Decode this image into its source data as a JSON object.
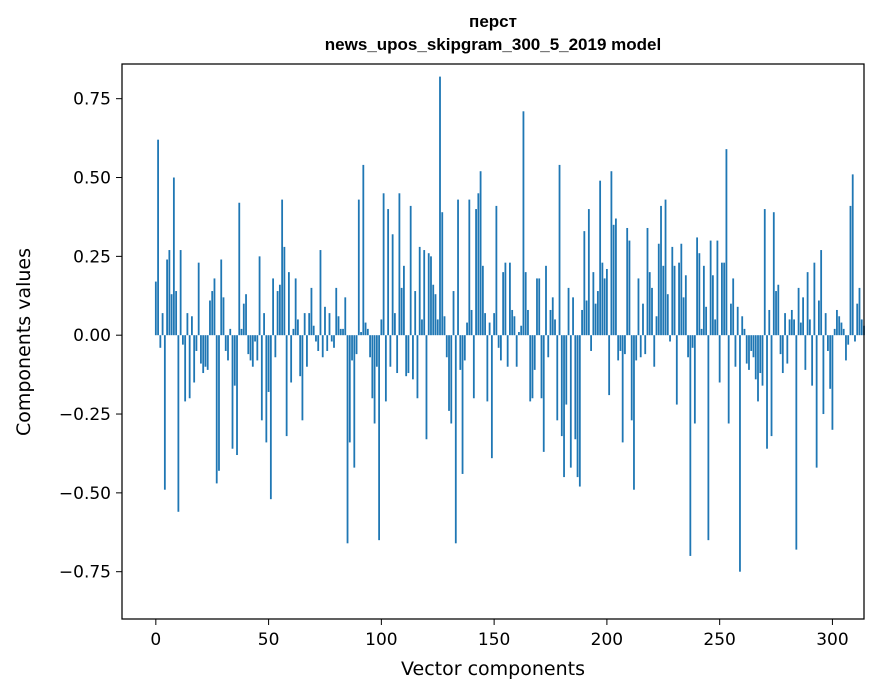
{
  "chart_data": {
    "type": "bar",
    "title": "перст",
    "subtitle": "news_upos_skipgram_300_5_2019 model",
    "xlabel": "Vector components",
    "ylabel": "Components values",
    "xlim": [
      -15,
      314
    ],
    "ylim": [
      -0.9,
      0.86
    ],
    "xticks": [
      0,
      50,
      100,
      150,
      200,
      250,
      300
    ],
    "xtick_labels": [
      "0",
      "50",
      "100",
      "150",
      "200",
      "250",
      "300"
    ],
    "yticks": [
      -0.75,
      -0.5,
      -0.25,
      0.0,
      0.25,
      0.5,
      0.75
    ],
    "ytick_labels": [
      "−0.75",
      "−0.50",
      "−0.25",
      "0.00",
      "0.25",
      "0.50",
      "0.75"
    ],
    "bar_color": "#1f77b4",
    "values": [
      0.17,
      0.62,
      -0.04,
      0.07,
      -0.49,
      0.24,
      0.27,
      0.13,
      0.5,
      0.14,
      -0.56,
      0.27,
      -0.03,
      -0.21,
      0.07,
      -0.2,
      0.06,
      -0.15,
      -0.05,
      0.23,
      -0.09,
      -0.12,
      -0.1,
      -0.11,
      0.11,
      0.14,
      0.18,
      -0.47,
      -0.43,
      0.24,
      0.12,
      -0.05,
      -0.08,
      0.02,
      -0.36,
      -0.16,
      -0.38,
      0.42,
      0.02,
      0.1,
      0.13,
      -0.06,
      -0.08,
      -0.1,
      -0.02,
      -0.08,
      0.25,
      -0.27,
      0.07,
      -0.34,
      -0.18,
      -0.52,
      0.18,
      -0.07,
      0.14,
      0.16,
      0.43,
      0.28,
      -0.32,
      0.2,
      -0.15,
      0.02,
      0.18,
      0.05,
      -0.13,
      -0.27,
      0.07,
      -0.1,
      0.07,
      0.15,
      0.03,
      -0.02,
      -0.05,
      0.27,
      -0.07,
      0.09,
      -0.05,
      0.07,
      -0.02,
      -0.04,
      0.15,
      0.06,
      0.02,
      0.02,
      0.12,
      -0.66,
      -0.34,
      -0.08,
      -0.42,
      -0.06,
      0.43,
      0.01,
      0.54,
      0.04,
      0.02,
      -0.07,
      -0.2,
      -0.28,
      -0.1,
      -0.65,
      0.05,
      0.45,
      -0.21,
      0.4,
      -0.1,
      0.32,
      0.07,
      -0.12,
      0.45,
      0.15,
      0.22,
      -0.13,
      -0.12,
      0.41,
      -0.14,
      0.14,
      -0.2,
      0.28,
      0.05,
      0.27,
      -0.33,
      0.26,
      0.25,
      0.16,
      0.13,
      0.05,
      0.82,
      0.39,
      0.06,
      -0.07,
      -0.24,
      -0.28,
      0.14,
      -0.66,
      0.43,
      -0.11,
      -0.44,
      -0.08,
      0.04,
      0.43,
      0.08,
      -0.2,
      0.4,
      0.45,
      0.52,
      0.22,
      0.07,
      -0.21,
      0.04,
      -0.39,
      0.07,
      0.41,
      -0.04,
      -0.08,
      0.2,
      0.23,
      -0.1,
      0.23,
      0.08,
      0.06,
      -0.1,
      0.01,
      0.03,
      0.71,
      0.2,
      0.08,
      -0.21,
      -0.2,
      -0.11,
      0.18,
      0.18,
      -0.2,
      -0.37,
      0.22,
      -0.07,
      0.08,
      0.12,
      0.05,
      -0.27,
      0.54,
      -0.32,
      -0.45,
      -0.22,
      0.15,
      -0.42,
      0.12,
      -0.33,
      -0.45,
      -0.48,
      0.08,
      0.33,
      0.11,
      0.4,
      -0.05,
      0.2,
      0.1,
      0.14,
      0.49,
      0.23,
      0.18,
      0.21,
      -0.19,
      0.52,
      0.35,
      0.37,
      -0.08,
      -0.05,
      -0.34,
      -0.06,
      0.34,
      0.3,
      -0.27,
      -0.49,
      -0.08,
      0.18,
      -0.07,
      0.1,
      -0.06,
      0.34,
      0.2,
      0.15,
      -0.1,
      0.06,
      0.29,
      0.41,
      0.22,
      0.43,
      0.13,
      -0.02,
      0.28,
      0.22,
      -0.22,
      0.23,
      0.29,
      0.12,
      0.19,
      -0.07,
      -0.7,
      -0.04,
      -0.28,
      0.31,
      0.26,
      0.02,
      0.22,
      0.09,
      -0.65,
      0.3,
      0.19,
      0.05,
      0.3,
      -0.15,
      0.23,
      0.23,
      0.59,
      -0.28,
      0.1,
      0.18,
      -0.1,
      0.09,
      -0.75,
      0.06,
      0.02,
      -0.09,
      -0.11,
      -0.05,
      -0.07,
      -0.14,
      -0.21,
      -0.12,
      -0.16,
      0.4,
      -0.36,
      0.08,
      -0.32,
      0.39,
      0.14,
      0.16,
      -0.06,
      -0.12,
      0.07,
      -0.09,
      0.05,
      0.08,
      0.05,
      -0.68,
      0.15,
      0.04,
      0.12,
      -0.11,
      0.2,
      0.05,
      -0.16,
      0.23,
      -0.42,
      0.11,
      0.27,
      -0.25,
      0.07,
      -0.05,
      -0.17,
      -0.3,
      0.02,
      0.08,
      0.06,
      0.04,
      0.02,
      -0.08,
      -0.03,
      0.41,
      0.51,
      -0.02,
      0.1,
      0.15,
      0.05,
      0.03
    ]
  }
}
